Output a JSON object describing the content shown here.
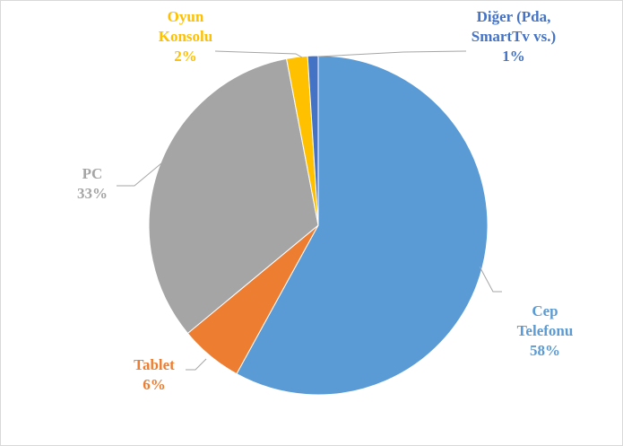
{
  "chart_data": {
    "type": "pie",
    "categories": [
      "Cep Telefonu",
      "Tablet",
      "PC",
      "Oyun Konsolu",
      "Diğer (Pda, SmartTv vs.)"
    ],
    "values": [
      58,
      6,
      33,
      2,
      1
    ],
    "value_labels": [
      "58%",
      "6%",
      "33%",
      "2%",
      "1%"
    ],
    "colors": [
      "#5b9bd5",
      "#ed7d31",
      "#a5a5a5",
      "#ffc000",
      "#4472c4"
    ]
  }
}
